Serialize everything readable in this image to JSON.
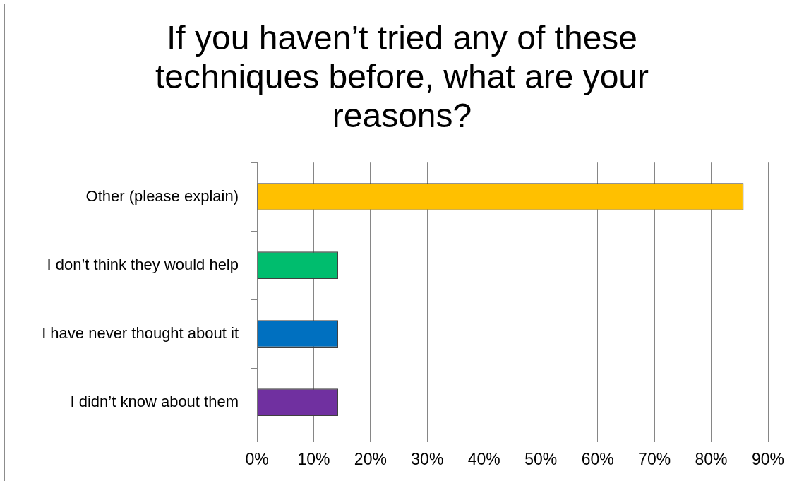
{
  "chart_data": {
    "type": "bar",
    "title": "If you haven’t tried any of these techniques before, what are your reasons?",
    "orientation": "horizontal",
    "categories": [
      "Other (please explain)",
      "I don’t think they would help",
      "I have never thought about it",
      "I didn’t know about them"
    ],
    "values": [
      85.7,
      14.3,
      14.3,
      14.3
    ],
    "colors": [
      "#ffc000",
      "#00bd6e",
      "#0070c0",
      "#7030a0"
    ],
    "xlim": [
      0,
      90
    ],
    "xticks": [
      {
        "value": 0,
        "label": "0%"
      },
      {
        "value": 10,
        "label": "10%"
      },
      {
        "value": 20,
        "label": "20%"
      },
      {
        "value": 30,
        "label": "30%"
      },
      {
        "value": 40,
        "label": "40%"
      },
      {
        "value": 50,
        "label": "50%"
      },
      {
        "value": 60,
        "label": "60%"
      },
      {
        "value": 70,
        "label": "70%"
      },
      {
        "value": 80,
        "label": "80%"
      },
      {
        "value": 90,
        "label": "90%"
      }
    ],
    "grid": "x"
  }
}
